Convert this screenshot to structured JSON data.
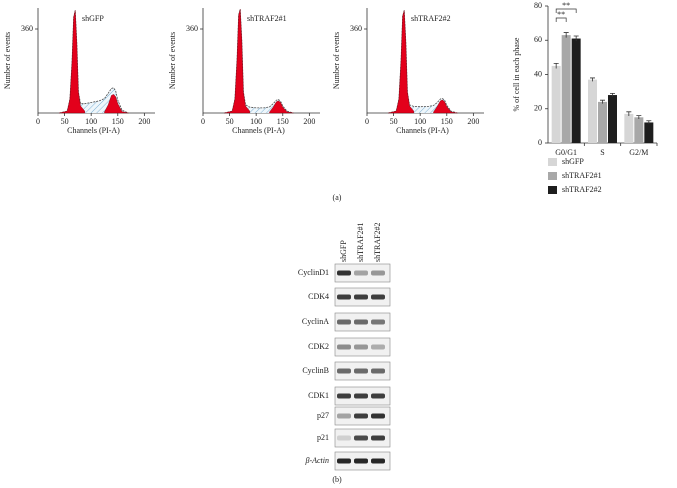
{
  "chart_data": [
    {
      "type": "area",
      "title": "shGFP",
      "xlabel": "Channels (PI-A)",
      "ylabel": "Number of events",
      "x": [
        40,
        55,
        60,
        64,
        67,
        70,
        73,
        76,
        80,
        88,
        100,
        115,
        125,
        132,
        138,
        142,
        146,
        150,
        158,
        170
      ],
      "series": [
        {
          "color": "#4a4a4a",
          "values": [
            0,
            8,
            60,
            220,
            410,
            440,
            300,
            90,
            40,
            40,
            45,
            52,
            62,
            85,
            105,
            108,
            95,
            55,
            12,
            0
          ]
        },
        {
          "color": "#e3001b",
          "values": [
            0,
            8,
            60,
            220,
            410,
            440,
            300,
            90,
            30,
            8,
            null,
            null,
            null,
            null,
            null,
            null,
            null,
            null,
            null,
            null
          ]
        },
        {
          "color": "#e3001b",
          "values": [
            null,
            null,
            null,
            null,
            null,
            null,
            null,
            null,
            null,
            null,
            null,
            null,
            5,
            35,
            75,
            80,
            70,
            40,
            6,
            0
          ]
        }
      ],
      "xlim": [
        0,
        220
      ],
      "ylim": [
        0,
        450
      ],
      "xticks": [
        0,
        50,
        100,
        150,
        200
      ],
      "yticks": [
        360
      ]
    },
    {
      "type": "area",
      "title": "shTRAF2#1",
      "xlabel": "Channels (PI-A)",
      "ylabel": "Number of events",
      "x": [
        40,
        55,
        60,
        64,
        67,
        70,
        73,
        76,
        80,
        88,
        100,
        115,
        125,
        132,
        138,
        142,
        146,
        150,
        158,
        170
      ],
      "series": [
        {
          "color": "#4a4a4a",
          "values": [
            0,
            8,
            60,
            230,
            420,
            445,
            310,
            90,
            35,
            25,
            22,
            22,
            26,
            40,
            55,
            58,
            50,
            30,
            8,
            0
          ]
        },
        {
          "color": "#e3001b",
          "values": [
            0,
            8,
            60,
            230,
            420,
            445,
            310,
            90,
            30,
            8,
            null,
            null,
            null,
            null,
            null,
            null,
            null,
            null,
            null,
            null
          ]
        },
        {
          "color": "#e3001b",
          "values": [
            null,
            null,
            null,
            null,
            null,
            null,
            null,
            null,
            null,
            null,
            null,
            null,
            4,
            25,
            48,
            52,
            45,
            25,
            5,
            0
          ]
        }
      ],
      "xlim": [
        0,
        220
      ],
      "ylim": [
        0,
        450
      ],
      "xticks": [
        0,
        50,
        100,
        150,
        200
      ],
      "yticks": [
        360
      ]
    },
    {
      "type": "area",
      "title": "shTRAF2#2",
      "xlabel": "Channels (PI-A)",
      "ylabel": "Number of events",
      "x": [
        40,
        55,
        60,
        64,
        67,
        70,
        73,
        76,
        80,
        88,
        100,
        115,
        125,
        132,
        138,
        142,
        146,
        150,
        158,
        170
      ],
      "series": [
        {
          "color": "#4a4a4a",
          "values": [
            0,
            8,
            60,
            225,
            415,
            440,
            305,
            90,
            35,
            28,
            27,
            28,
            32,
            45,
            60,
            62,
            55,
            33,
            8,
            0
          ]
        },
        {
          "color": "#e3001b",
          "values": [
            0,
            8,
            60,
            225,
            415,
            440,
            305,
            90,
            30,
            8,
            null,
            null,
            null,
            null,
            null,
            null,
            null,
            null,
            null,
            null
          ]
        },
        {
          "color": "#e3001b",
          "values": [
            null,
            null,
            null,
            null,
            null,
            null,
            null,
            null,
            null,
            null,
            null,
            null,
            4,
            28,
            52,
            56,
            48,
            28,
            5,
            0
          ]
        }
      ],
      "xlim": [
        0,
        220
      ],
      "ylim": [
        0,
        450
      ],
      "xticks": [
        0,
        50,
        100,
        150,
        200
      ],
      "yticks": [
        360
      ]
    },
    {
      "type": "bar",
      "ylabel": "% of cell in each phase",
      "categories": [
        "G0/G1",
        "S",
        "G2/M"
      ],
      "series": [
        {
          "name": "shGFP",
          "color": "#d6d6d6",
          "values": [
            45,
            37,
            17
          ],
          "errors": [
            1.5,
            1,
            1.2
          ]
        },
        {
          "name": "shTRAF2#1",
          "color": "#a8a8a8",
          "values": [
            63,
            24,
            15
          ],
          "errors": [
            1.5,
            1,
            1
          ]
        },
        {
          "name": "shTRAF2#2",
          "color": "#1e1e1e",
          "values": [
            61,
            28,
            12
          ],
          "errors": [
            1.5,
            1,
            1
          ]
        }
      ],
      "ylim": [
        0,
        80
      ],
      "yticks": [
        0,
        20,
        40,
        60,
        80
      ],
      "annotations": [
        "**",
        "**"
      ]
    }
  ],
  "panel_labels": [
    "(a)",
    "(b)"
  ],
  "blot": {
    "lanes": [
      "shGFP",
      "shTRAF2#1",
      "shTRAF2#2"
    ],
    "proteins": [
      "CyclinD1",
      "CDK4",
      "CyclinA",
      "CDK2",
      "CyclinB",
      "CDK1",
      "p27",
      "p21",
      "β-Actin"
    ]
  }
}
